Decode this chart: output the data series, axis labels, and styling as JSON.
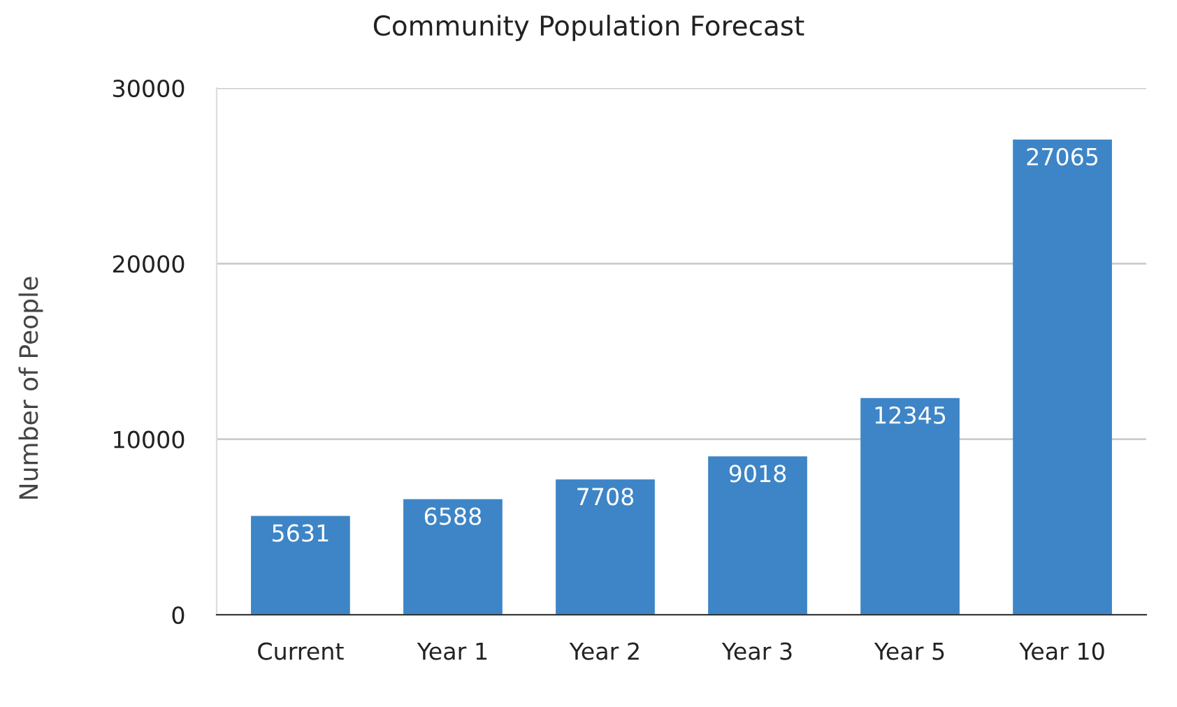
{
  "chart_data": {
    "type": "bar",
    "title": "Community Population Forecast",
    "ylabel": "Number of People",
    "categories": [
      "Current",
      "Year 1",
      "Year 2",
      "Year 3",
      "Year 5",
      "Year 10"
    ],
    "values": [
      5631,
      6588,
      7708,
      9018,
      12345,
      27065
    ],
    "color": "#3d85c6",
    "ylim": [
      0,
      30000
    ],
    "yticks": [
      0,
      10000,
      20000,
      30000
    ],
    "grid": "y",
    "data_labels": true,
    "legend": false
  }
}
